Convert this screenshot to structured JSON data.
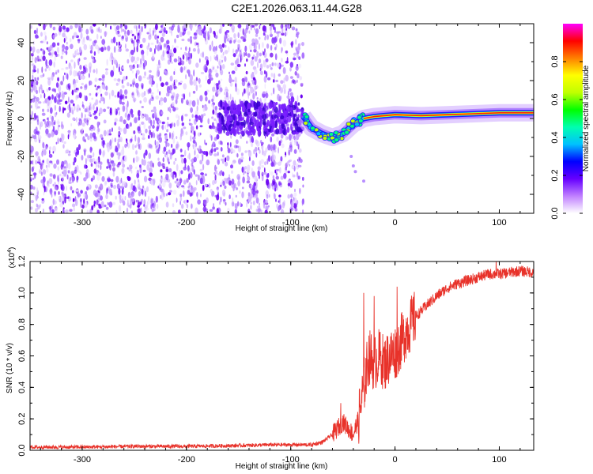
{
  "page": {
    "title": "C2E1.2026.063.11.44.G28"
  },
  "chart_data": [
    {
      "type": "heatmap",
      "title": "C2E1.2026.063.11.44.G28",
      "xlabel": "Height of straight line (km)",
      "ylabel": "Frequency (Hz)",
      "xlim": [
        -350,
        133
      ],
      "ylim": [
        -50,
        50
      ],
      "xticks": [
        -300,
        -200,
        -100,
        0,
        100
      ],
      "yticks": [
        -40,
        -20,
        0,
        20,
        40
      ],
      "grid": false,
      "colorbar": {
        "label": "Normalized spectral amplitude",
        "range": [
          0,
          1
        ],
        "ticks": [
          "0.0",
          "0.2",
          "0.4",
          "0.6",
          "0.8"
        ],
        "colors": [
          "#ffffff",
          "#c080ff",
          "#6600ff",
          "#0000ff",
          "#00c0ff",
          "#00ffb0",
          "#00ff00",
          "#c0ff00",
          "#ffff00",
          "#ff8000",
          "#ff0000",
          "#ff00ff"
        ]
      },
      "noise_region_x": [
        -350,
        -88
      ],
      "signal_track": [
        {
          "x": -88,
          "y": 1
        },
        {
          "x": -80,
          "y": -5
        },
        {
          "x": -70,
          "y": -8
        },
        {
          "x": -60,
          "y": -10
        },
        {
          "x": -50,
          "y": -8
        },
        {
          "x": -40,
          "y": -3
        },
        {
          "x": -30,
          "y": 0
        },
        {
          "x": -20,
          "y": 1
        },
        {
          "x": -10,
          "y": 1.5
        },
        {
          "x": 0,
          "y": 2
        },
        {
          "x": 25,
          "y": 1.5
        },
        {
          "x": 50,
          "y": 2
        },
        {
          "x": 75,
          "y": 2.5
        },
        {
          "x": 100,
          "y": 3
        },
        {
          "x": 133,
          "y": 3
        }
      ]
    },
    {
      "type": "line",
      "title": "",
      "xlabel": "Height of straight line (km)",
      "ylabel": "SNR (10 * v/v)",
      "scale_label": "(x10^4)",
      "scale_base": "x10",
      "scale_exp": "4",
      "xlim": [
        -350,
        133
      ],
      "ylim": [
        0,
        1.2
      ],
      "xticks": [
        -300,
        -200,
        -100,
        0,
        100
      ],
      "yticks": [
        "0.0",
        "0.2",
        "0.4",
        "0.6",
        "0.8",
        "1.0",
        "1.2"
      ],
      "grid": false,
      "series": [
        {
          "name": "SNR",
          "color": "#e8322a",
          "x": [
            -350,
            -300,
            -250,
            -200,
            -150,
            -120,
            -100,
            -80,
            -70,
            -60,
            -50,
            -40,
            -35,
            -30,
            -25,
            -20,
            -15,
            -10,
            -5,
            0,
            5,
            10,
            20,
            30,
            40,
            50,
            60,
            70,
            80,
            90,
            100,
            110,
            120,
            133
          ],
          "y": [
            0.02,
            0.02,
            0.025,
            0.025,
            0.03,
            0.035,
            0.035,
            0.035,
            0.05,
            0.1,
            0.18,
            0.1,
            0.2,
            0.4,
            0.6,
            0.55,
            0.6,
            0.55,
            0.6,
            0.62,
            0.68,
            0.75,
            0.85,
            0.92,
            0.98,
            1.03,
            1.06,
            1.08,
            1.1,
            1.12,
            1.12,
            1.13,
            1.14,
            1.13
          ]
        }
      ],
      "spikes": [
        {
          "x": -30,
          "y": 1.0
        },
        {
          "x": -20,
          "y": 0.98
        },
        {
          "x": 2,
          "y": 1.04
        },
        {
          "x": 97,
          "y": 1.22
        },
        {
          "x": -52,
          "y": 0.3
        }
      ]
    }
  ]
}
